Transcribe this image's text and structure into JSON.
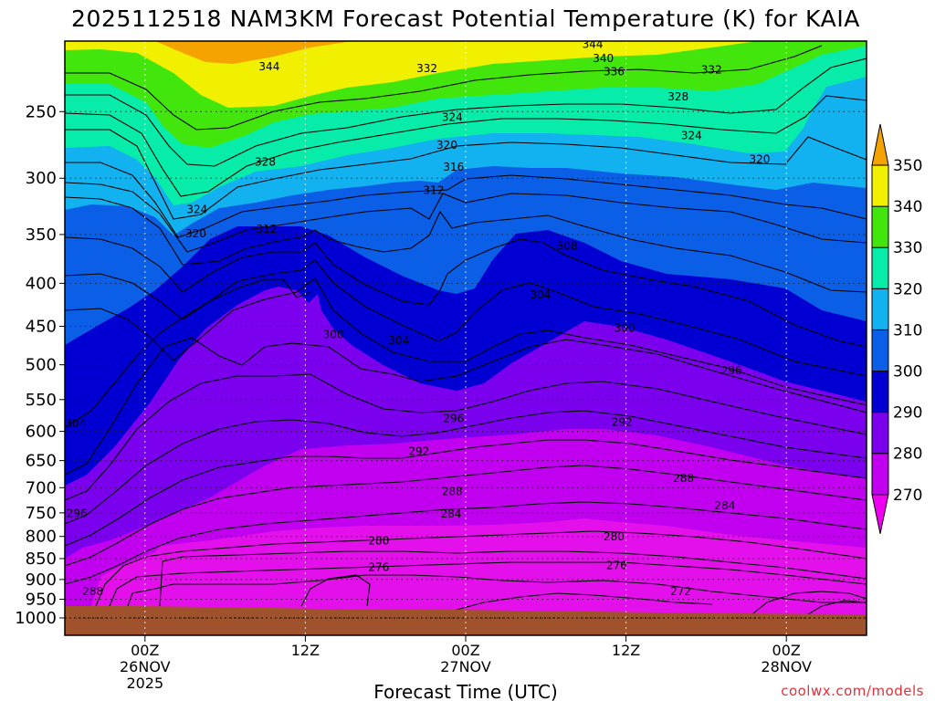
{
  "chart_data": {
    "type": "heatmap",
    "title": "2025112518 NAM3KM Forecast Potential Temperature (K) for KAIA",
    "xlabel": "Forecast Time (UTC)",
    "ylabel": "",
    "credit": "coolwx.com/models",
    "x_ticks": [
      {
        "hour": 6,
        "lines": [
          "00Z",
          "26NOV",
          "2025"
        ]
      },
      {
        "hour": 18,
        "lines": [
          "12Z"
        ]
      },
      {
        "hour": 30,
        "lines": [
          "00Z",
          "27NOV"
        ]
      },
      {
        "hour": 42,
        "lines": [
          "12Z"
        ]
      },
      {
        "hour": 54,
        "lines": [
          "00Z",
          "28NOV"
        ]
      }
    ],
    "xlim_hours": [
      0,
      60
    ],
    "y_ticks": [
      250,
      300,
      350,
      400,
      450,
      500,
      550,
      600,
      650,
      700,
      750,
      800,
      850,
      900,
      950,
      1000
    ],
    "ylim_hPa": [
      1000,
      200
    ],
    "colorbar": {
      "ticks": [
        270,
        280,
        290,
        300,
        310,
        320,
        330,
        340,
        350
      ],
      "colors": [
        "#f000f0",
        "#c000ee",
        "#7a00ee",
        "#0000d2",
        "#0b5fe6",
        "#12b2f0",
        "#08ecaa",
        "#42e60c",
        "#f0f000",
        "#f5a300"
      ]
    },
    "contour_labels": [
      {
        "text": "344",
        "t": 15.3,
        "p": 221
      },
      {
        "text": "344",
        "t": 39.5,
        "p": 208
      },
      {
        "text": "340",
        "t": 40.3,
        "p": 216
      },
      {
        "text": "336",
        "t": 41.1,
        "p": 224
      },
      {
        "text": "332",
        "t": 27.1,
        "p": 222
      },
      {
        "text": "332",
        "t": 48.4,
        "p": 223
      },
      {
        "text": "328",
        "t": 45.9,
        "p": 240
      },
      {
        "text": "328",
        "t": 15.0,
        "p": 287
      },
      {
        "text": "324",
        "t": 29.0,
        "p": 254
      },
      {
        "text": "324",
        "t": 46.9,
        "p": 267
      },
      {
        "text": "324",
        "t": 9.9,
        "p": 327
      },
      {
        "text": "320",
        "t": 28.6,
        "p": 274
      },
      {
        "text": "320",
        "t": 52.0,
        "p": 285
      },
      {
        "text": "320",
        "t": 9.8,
        "p": 349
      },
      {
        "text": "316",
        "t": 29.1,
        "p": 291
      },
      {
        "text": "312",
        "t": 27.6,
        "p": 310
      },
      {
        "text": "312",
        "t": 15.1,
        "p": 345
      },
      {
        "text": "308",
        "t": 37.6,
        "p": 361
      },
      {
        "text": "304",
        "t": 35.6,
        "p": 413
      },
      {
        "text": "304",
        "t": 25.0,
        "p": 468
      },
      {
        "text": "304",
        "t": 0.8,
        "p": 587
      },
      {
        "text": "300",
        "t": 20.1,
        "p": 460
      },
      {
        "text": "300",
        "t": 41.9,
        "p": 452
      },
      {
        "text": "296",
        "t": 49.9,
        "p": 508
      },
      {
        "text": "296",
        "t": 29.1,
        "p": 579
      },
      {
        "text": "296",
        "t": 0.9,
        "p": 751
      },
      {
        "text": "292",
        "t": 41.7,
        "p": 585
      },
      {
        "text": "292",
        "t": 26.5,
        "p": 634
      },
      {
        "text": "288",
        "t": 46.3,
        "p": 682
      },
      {
        "text": "288",
        "t": 29.0,
        "p": 707
      },
      {
        "text": "288",
        "t": 2.1,
        "p": 930
      },
      {
        "text": "284",
        "t": 49.4,
        "p": 735
      },
      {
        "text": "284",
        "t": 28.9,
        "p": 752
      },
      {
        "text": "280",
        "t": 23.5,
        "p": 810
      },
      {
        "text": "280",
        "t": 41.1,
        "p": 801
      },
      {
        "text": "276",
        "t": 23.5,
        "p": 871
      },
      {
        "text": "276",
        "t": 41.3,
        "p": 866
      },
      {
        "text": "272",
        "t": 46.1,
        "p": 930
      }
    ]
  }
}
